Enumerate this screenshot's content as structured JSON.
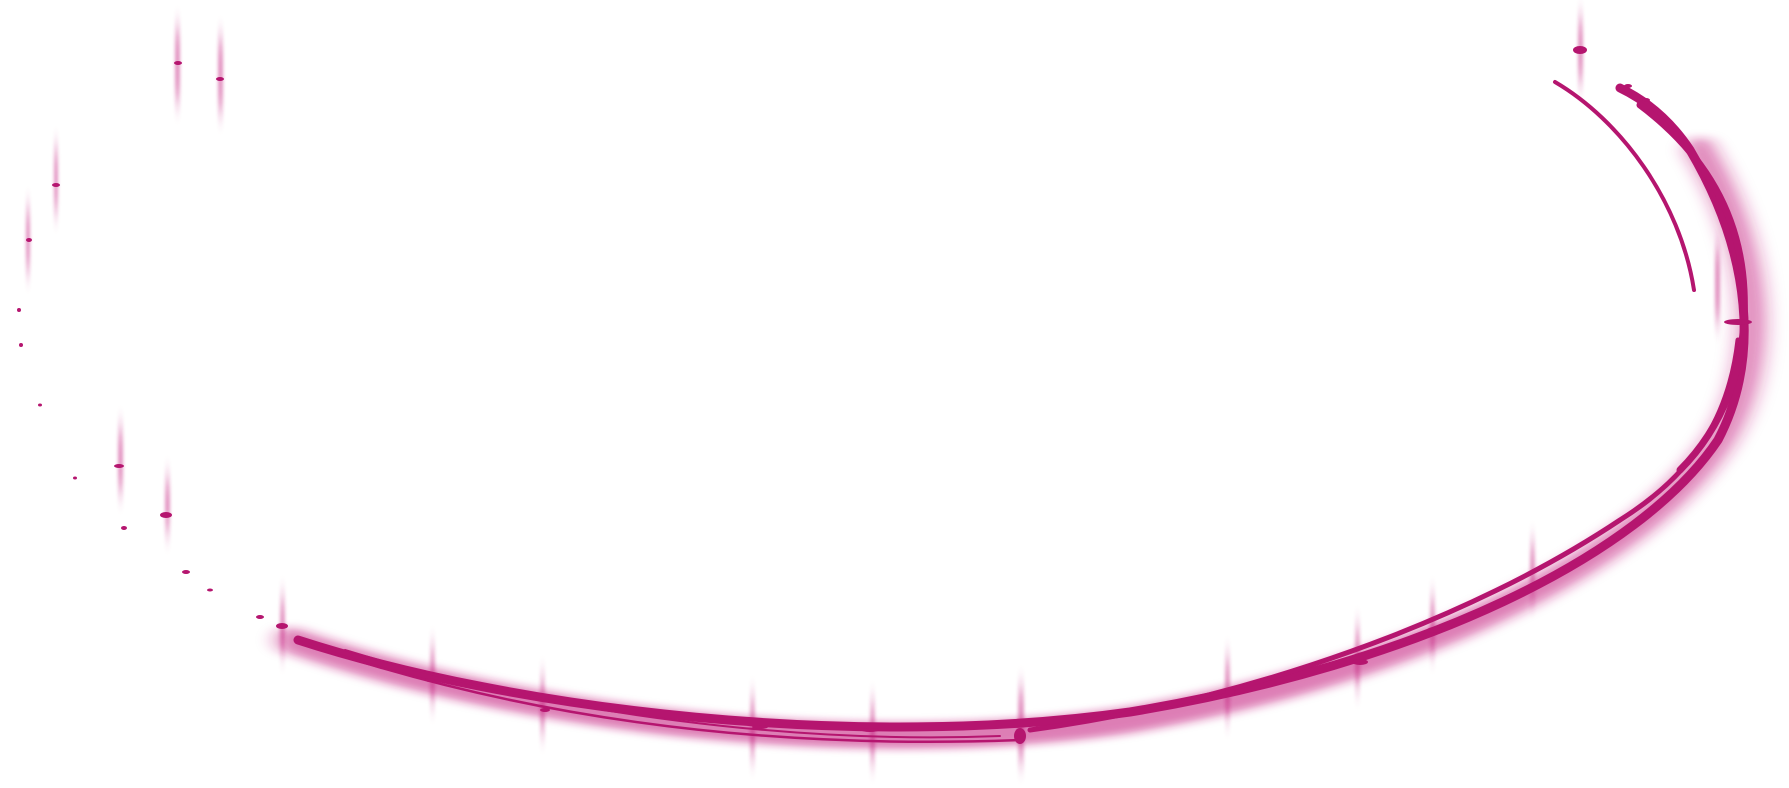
{
  "graphic": {
    "icon": "brush-stroke-swoosh-icon",
    "accent_color": "#b5156f",
    "glow_color": "#c2187a"
  }
}
